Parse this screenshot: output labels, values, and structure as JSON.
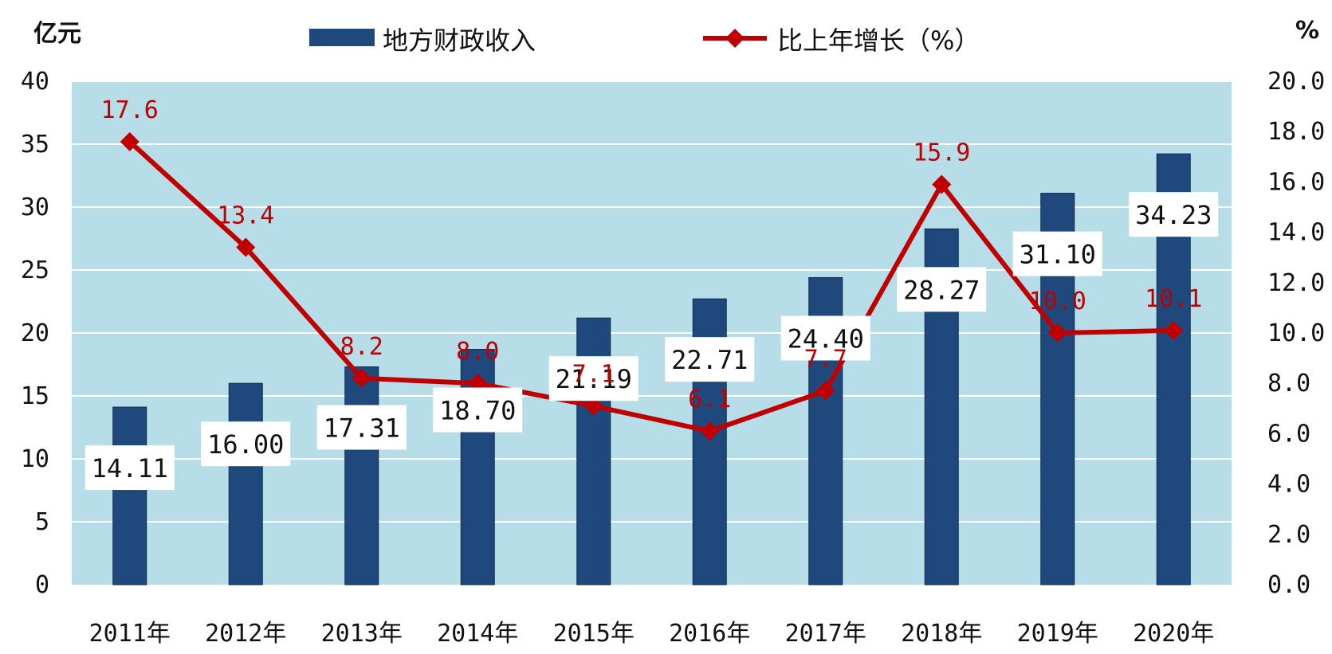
{
  "chart_data": {
    "type": "bar",
    "left_unit": "亿元",
    "right_unit": "%",
    "categories": [
      "2011年",
      "2012年",
      "2013年",
      "2014年",
      "2015年",
      "2016年",
      "2017年",
      "2018年",
      "2019年",
      "2020年"
    ],
    "series": [
      {
        "name": "地方财政收入",
        "kind": "bar",
        "axis": "left",
        "color": "#1f497d",
        "values": [
          14.11,
          16.0,
          17.31,
          18.7,
          21.19,
          22.71,
          24.4,
          28.27,
          31.1,
          34.23
        ],
        "labels": [
          "14.11",
          "16.00",
          "17.31",
          "18.70",
          "21.19",
          "22.71",
          "24.40",
          "28.27",
          "31.10",
          "34.23"
        ]
      },
      {
        "name": "比上年增长（%）",
        "kind": "line",
        "axis": "right",
        "color": "#c00000",
        "values": [
          17.6,
          13.4,
          8.2,
          8.0,
          7.1,
          6.1,
          7.7,
          15.9,
          10.0,
          10.1
        ],
        "labels": [
          "17.6",
          "13.4",
          "8.2",
          "8.0",
          "7.1",
          "6.1",
          "7.7",
          "15.9",
          "10.0",
          "10.1"
        ]
      }
    ],
    "y_left": {
      "lim": [
        0,
        40
      ],
      "ticks": [
        "0",
        "5",
        "10",
        "15",
        "20",
        "25",
        "30",
        "35",
        "40"
      ]
    },
    "y_right": {
      "lim": [
        0,
        20
      ],
      "ticks": [
        "0.0",
        "2.0",
        "4.0",
        "6.0",
        "8.0",
        "10.0",
        "12.0",
        "14.0",
        "16.0",
        "18.0",
        "20.0"
      ]
    },
    "grid": true,
    "legend": "top",
    "plot_background": "#b7dde8"
  }
}
